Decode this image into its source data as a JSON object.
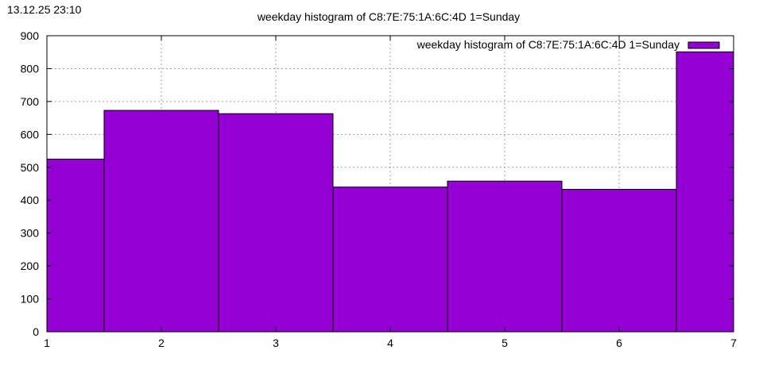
{
  "header": {
    "timestamp": "13.12.25 23:10"
  },
  "chart_data": {
    "type": "bar",
    "title": "weekday histogram of C8:7E:75:1A:6C:4D 1=Sunday",
    "xlabel": "",
    "ylabel": "",
    "x": [
      1,
      2,
      3,
      4,
      5,
      6,
      7
    ],
    "series": [
      {
        "name": "weekday histogram of C8:7E:75:1A:6C:4D 1=Sunday",
        "values": [
          525,
          673,
          663,
          440,
          458,
          433,
          851
        ],
        "color": "#9400d3"
      }
    ],
    "xlim": [
      1,
      7
    ],
    "ylim": [
      0,
      900
    ],
    "xticks": [
      1,
      2,
      3,
      4,
      5,
      6,
      7
    ],
    "yticks": [
      0,
      100,
      200,
      300,
      400,
      500,
      600,
      700,
      800,
      900
    ],
    "bar_width": 1,
    "grid": true,
    "legend": "top-right"
  }
}
